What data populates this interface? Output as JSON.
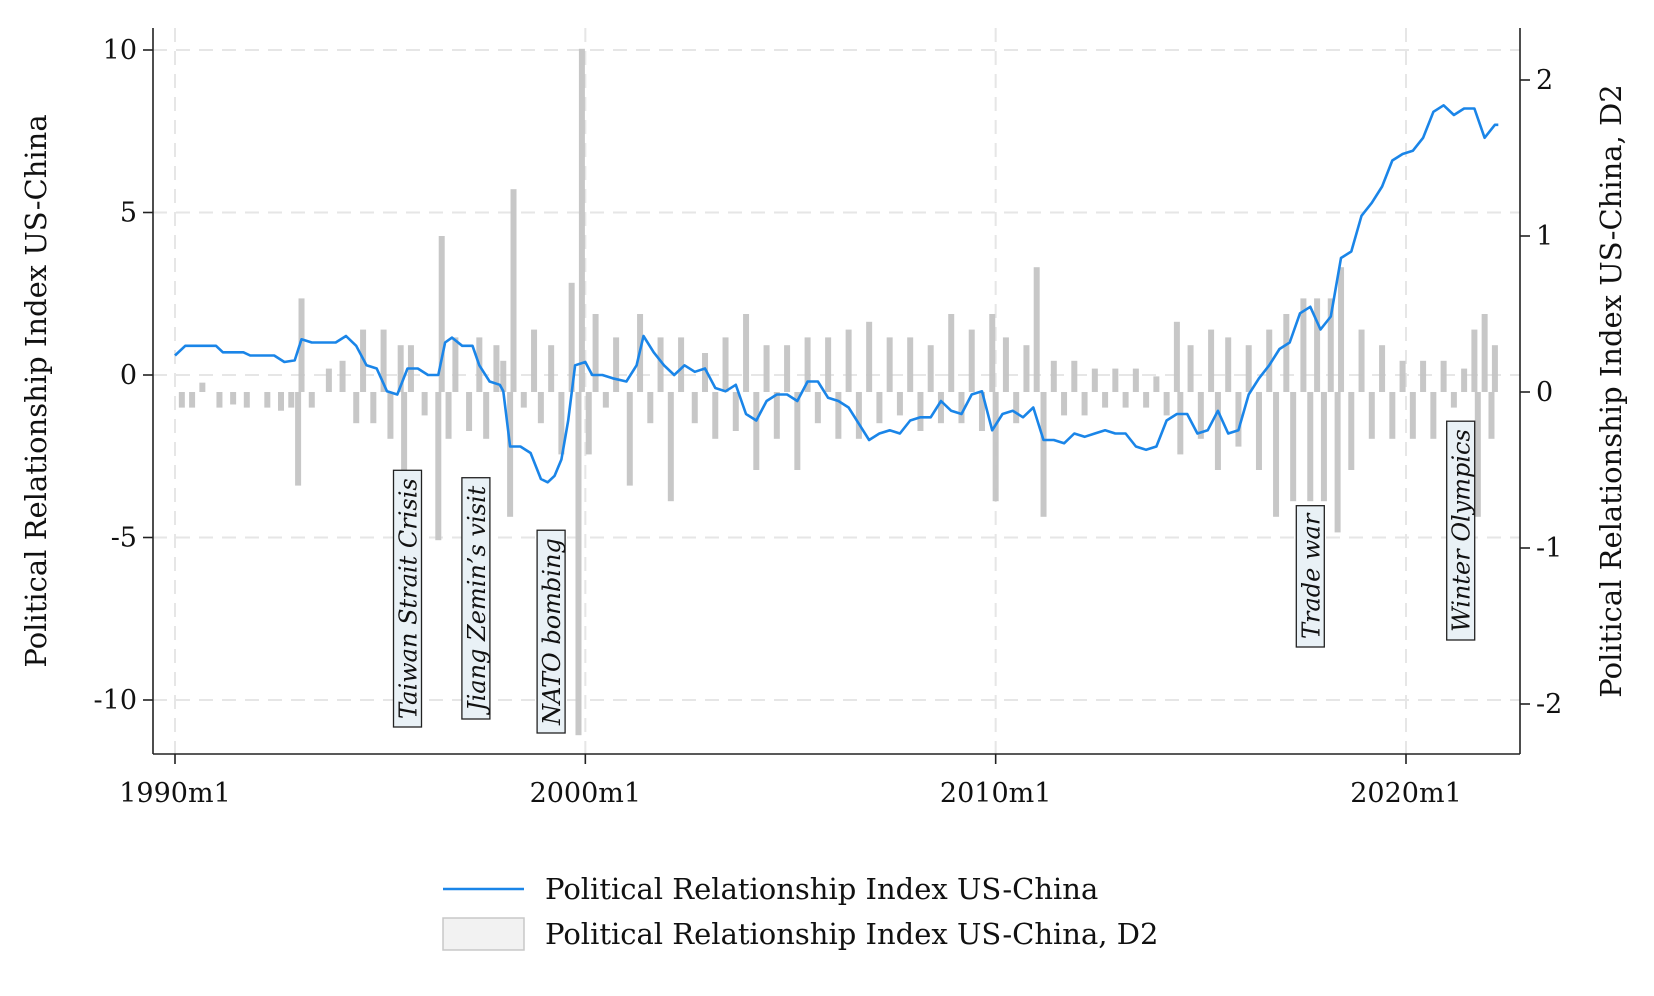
{
  "chart_data": {
    "type": "line",
    "title": "",
    "xlabel": "",
    "ylabel": "Political Relationship Index US-China",
    "ylabel_right": "Political Relationship Index US-China, D2",
    "x_ticks": [
      "1990m1",
      "2000m1",
      "2010m1",
      "2020m1"
    ],
    "x_range": [
      "1990-01",
      "2022-04"
    ],
    "ylim_left": [
      -11.5,
      10.5
    ],
    "ylim_right": [
      -2.3,
      2.3
    ],
    "y_ticks_left": [
      "10",
      "5",
      "0",
      "-5",
      "-10"
    ],
    "y_ticks_right": [
      "2",
      "1",
      "0",
      "-1",
      "-2"
    ],
    "grid": true,
    "legend_position": "bottom",
    "series": [
      {
        "name": "Political Relationship Index US-China",
        "kind": "line",
        "axis": "left",
        "color": "#1a85e8",
        "points": [
          [
            "1990-01",
            0.6
          ],
          [
            "1990-04",
            0.9
          ],
          [
            "1990-07",
            0.9
          ],
          [
            "1991-01",
            0.9
          ],
          [
            "1991-03",
            0.7
          ],
          [
            "1991-09",
            0.7
          ],
          [
            "1991-11",
            0.6
          ],
          [
            "1992-06",
            0.6
          ],
          [
            "1992-09",
            0.4
          ],
          [
            "1992-12",
            0.45
          ],
          [
            "1993-02",
            1.1
          ],
          [
            "1993-05",
            1.0
          ],
          [
            "1993-09",
            1.0
          ],
          [
            "1993-12",
            1.0
          ],
          [
            "1994-03",
            1.2
          ],
          [
            "1994-06",
            0.9
          ],
          [
            "1994-09",
            0.3
          ],
          [
            "1994-12",
            0.2
          ],
          [
            "1995-03",
            -0.5
          ],
          [
            "1995-06",
            -0.6
          ],
          [
            "1995-09",
            0.2
          ],
          [
            "1995-12",
            0.2
          ],
          [
            "1996-03",
            0.0
          ],
          [
            "1996-06",
            0.0
          ],
          [
            "1996-08",
            1.0
          ],
          [
            "1996-10",
            1.15
          ],
          [
            "1997-01",
            0.9
          ],
          [
            "1997-04",
            0.9
          ],
          [
            "1997-06",
            0.3
          ],
          [
            "1997-09",
            -0.2
          ],
          [
            "1997-12",
            -0.3
          ],
          [
            "1998-01",
            -0.5
          ],
          [
            "1998-03",
            -2.2
          ],
          [
            "1998-06",
            -2.2
          ],
          [
            "1998-09",
            -2.4
          ],
          [
            "1998-12",
            -3.2
          ],
          [
            "1999-02",
            -3.3
          ],
          [
            "1999-04",
            -3.1
          ],
          [
            "1999-06",
            -2.6
          ],
          [
            "1999-08",
            -1.4
          ],
          [
            "1999-10",
            0.3
          ],
          [
            "2000-01",
            0.4
          ],
          [
            "2000-03",
            0.0
          ],
          [
            "2000-06",
            0.0
          ],
          [
            "2000-09",
            -0.1
          ],
          [
            "2001-01",
            -0.2
          ],
          [
            "2001-04",
            0.3
          ],
          [
            "2001-06",
            1.2
          ],
          [
            "2001-09",
            0.7
          ],
          [
            "2001-12",
            0.3
          ],
          [
            "2002-03",
            0.0
          ],
          [
            "2002-06",
            0.3
          ],
          [
            "2002-09",
            0.1
          ],
          [
            "2002-12",
            0.2
          ],
          [
            "2003-03",
            -0.4
          ],
          [
            "2003-06",
            -0.5
          ],
          [
            "2003-09",
            -0.3
          ],
          [
            "2003-12",
            -1.2
          ],
          [
            "2004-03",
            -1.4
          ],
          [
            "2004-06",
            -0.8
          ],
          [
            "2004-09",
            -0.6
          ],
          [
            "2004-12",
            -0.6
          ],
          [
            "2005-03",
            -0.8
          ],
          [
            "2005-06",
            -0.2
          ],
          [
            "2005-09",
            -0.2
          ],
          [
            "2005-12",
            -0.7
          ],
          [
            "2006-03",
            -0.8
          ],
          [
            "2006-06",
            -1.0
          ],
          [
            "2006-09",
            -1.5
          ],
          [
            "2006-12",
            -2.0
          ],
          [
            "2007-03",
            -1.8
          ],
          [
            "2007-06",
            -1.7
          ],
          [
            "2007-09",
            -1.8
          ],
          [
            "2007-12",
            -1.4
          ],
          [
            "2008-03",
            -1.3
          ],
          [
            "2008-06",
            -1.3
          ],
          [
            "2008-09",
            -0.8
          ],
          [
            "2008-12",
            -1.1
          ],
          [
            "2009-03",
            -1.2
          ],
          [
            "2009-06",
            -0.6
          ],
          [
            "2009-09",
            -0.5
          ],
          [
            "2009-12",
            -1.7
          ],
          [
            "2010-03",
            -1.2
          ],
          [
            "2010-06",
            -1.1
          ],
          [
            "2010-09",
            -1.3
          ],
          [
            "2010-12",
            -1.0
          ],
          [
            "2011-03",
            -2.0
          ],
          [
            "2011-06",
            -2.0
          ],
          [
            "2011-09",
            -2.1
          ],
          [
            "2011-12",
            -1.8
          ],
          [
            "2012-03",
            -1.9
          ],
          [
            "2012-06",
            -1.8
          ],
          [
            "2012-09",
            -1.7
          ],
          [
            "2012-12",
            -1.8
          ],
          [
            "2013-03",
            -1.8
          ],
          [
            "2013-06",
            -2.2
          ],
          [
            "2013-09",
            -2.3
          ],
          [
            "2013-12",
            -2.2
          ],
          [
            "2014-03",
            -1.4
          ],
          [
            "2014-06",
            -1.2
          ],
          [
            "2014-09",
            -1.2
          ],
          [
            "2014-12",
            -1.8
          ],
          [
            "2015-03",
            -1.7
          ],
          [
            "2015-06",
            -1.1
          ],
          [
            "2015-09",
            -1.8
          ],
          [
            "2015-12",
            -1.7
          ],
          [
            "2016-03",
            -0.6
          ],
          [
            "2016-06",
            -0.1
          ],
          [
            "2016-09",
            0.3
          ],
          [
            "2016-12",
            0.8
          ],
          [
            "2017-03",
            1.0
          ],
          [
            "2017-06",
            1.9
          ],
          [
            "2017-09",
            2.1
          ],
          [
            "2017-12",
            1.4
          ],
          [
            "2018-03",
            1.8
          ],
          [
            "2018-06",
            3.6
          ],
          [
            "2018-09",
            3.8
          ],
          [
            "2018-12",
            4.9
          ],
          [
            "2019-03",
            5.3
          ],
          [
            "2019-06",
            5.8
          ],
          [
            "2019-09",
            6.6
          ],
          [
            "2019-12",
            6.8
          ],
          [
            "2020-03",
            6.9
          ],
          [
            "2020-06",
            7.3
          ],
          [
            "2020-09",
            8.1
          ],
          [
            "2020-12",
            8.3
          ],
          [
            "2021-03",
            8.0
          ],
          [
            "2021-06",
            8.2
          ],
          [
            "2021-09",
            8.2
          ],
          [
            "2021-12",
            7.3
          ],
          [
            "2022-03",
            7.7
          ],
          [
            "2022-04",
            7.7
          ]
        ]
      },
      {
        "name": "Political Relationship Index US-China, D2",
        "kind": "bar",
        "axis": "right",
        "color": "#c4c4c4",
        "points": [
          [
            "1990-03",
            -0.1
          ],
          [
            "1990-06",
            -0.1
          ],
          [
            "1990-09",
            0.06
          ],
          [
            "1991-02",
            -0.1
          ],
          [
            "1991-06",
            -0.08
          ],
          [
            "1991-10",
            -0.1
          ],
          [
            "1992-04",
            -0.1
          ],
          [
            "1992-08",
            -0.12
          ],
          [
            "1992-11",
            -0.1
          ],
          [
            "1993-01",
            -0.6
          ],
          [
            "1993-02",
            0.6
          ],
          [
            "1993-05",
            -0.1
          ],
          [
            "1993-10",
            0.15
          ],
          [
            "1994-02",
            0.2
          ],
          [
            "1994-06",
            -0.2
          ],
          [
            "1994-08",
            0.4
          ],
          [
            "1994-11",
            -0.2
          ],
          [
            "1995-02",
            0.4
          ],
          [
            "1995-04",
            -0.3
          ],
          [
            "1995-07",
            0.3
          ],
          [
            "1995-08",
            -0.5
          ],
          [
            "1995-10",
            0.3
          ],
          [
            "1996-02",
            -0.15
          ],
          [
            "1996-06",
            -0.95
          ],
          [
            "1996-07",
            1.0
          ],
          [
            "1996-09",
            -0.3
          ],
          [
            "1996-11",
            0.35
          ],
          [
            "1997-03",
            -0.25
          ],
          [
            "1997-06",
            0.35
          ],
          [
            "1997-08",
            -0.3
          ],
          [
            "1997-11",
            0.3
          ],
          [
            "1998-01",
            0.2
          ],
          [
            "1998-03",
            -0.8
          ],
          [
            "1998-04",
            1.3
          ],
          [
            "1998-07",
            -0.1
          ],
          [
            "1998-10",
            0.4
          ],
          [
            "1998-12",
            -0.2
          ],
          [
            "1999-03",
            0.3
          ],
          [
            "1999-06",
            -0.4
          ],
          [
            "1999-09",
            0.7
          ],
          [
            "1999-11",
            -2.2
          ],
          [
            "1999-12",
            2.2
          ],
          [
            "2000-02",
            -0.4
          ],
          [
            "2000-04",
            0.5
          ],
          [
            "2000-07",
            -0.1
          ],
          [
            "2000-10",
            0.35
          ],
          [
            "2001-02",
            -0.6
          ],
          [
            "2001-05",
            0.5
          ],
          [
            "2001-08",
            -0.2
          ],
          [
            "2001-11",
            0.35
          ],
          [
            "2002-02",
            -0.7
          ],
          [
            "2002-05",
            0.35
          ],
          [
            "2002-09",
            -0.2
          ],
          [
            "2002-12",
            0.25
          ],
          [
            "2003-03",
            -0.3
          ],
          [
            "2003-06",
            0.35
          ],
          [
            "2003-09",
            -0.25
          ],
          [
            "2003-12",
            0.5
          ],
          [
            "2004-03",
            -0.5
          ],
          [
            "2004-06",
            0.3
          ],
          [
            "2004-09",
            -0.3
          ],
          [
            "2004-12",
            0.3
          ],
          [
            "2005-03",
            -0.5
          ],
          [
            "2005-06",
            0.35
          ],
          [
            "2005-09",
            -0.2
          ],
          [
            "2005-12",
            0.35
          ],
          [
            "2006-03",
            -0.3
          ],
          [
            "2006-06",
            0.4
          ],
          [
            "2006-09",
            -0.3
          ],
          [
            "2006-12",
            0.45
          ],
          [
            "2007-03",
            -0.2
          ],
          [
            "2007-06",
            0.35
          ],
          [
            "2007-09",
            -0.15
          ],
          [
            "2007-12",
            0.35
          ],
          [
            "2008-03",
            -0.25
          ],
          [
            "2008-06",
            0.3
          ],
          [
            "2008-09",
            -0.2
          ],
          [
            "2008-12",
            0.5
          ],
          [
            "2009-03",
            -0.2
          ],
          [
            "2009-06",
            0.4
          ],
          [
            "2009-09",
            -0.25
          ],
          [
            "2009-12",
            0.5
          ],
          [
            "2010-01",
            -0.7
          ],
          [
            "2010-04",
            0.35
          ],
          [
            "2010-07",
            -0.2
          ],
          [
            "2010-10",
            0.3
          ],
          [
            "2011-01",
            0.8
          ],
          [
            "2011-03",
            -0.8
          ],
          [
            "2011-06",
            0.2
          ],
          [
            "2011-09",
            -0.15
          ],
          [
            "2011-12",
            0.2
          ],
          [
            "2012-03",
            -0.15
          ],
          [
            "2012-06",
            0.15
          ],
          [
            "2012-09",
            -0.1
          ],
          [
            "2012-12",
            0.15
          ],
          [
            "2013-03",
            -0.1
          ],
          [
            "2013-06",
            0.15
          ],
          [
            "2013-09",
            -0.1
          ],
          [
            "2013-12",
            0.1
          ],
          [
            "2014-03",
            -0.15
          ],
          [
            "2014-06",
            0.45
          ],
          [
            "2014-07",
            -0.4
          ],
          [
            "2014-10",
            0.3
          ],
          [
            "2015-01",
            -0.3
          ],
          [
            "2015-04",
            0.4
          ],
          [
            "2015-06",
            -0.5
          ],
          [
            "2015-09",
            0.35
          ],
          [
            "2015-12",
            -0.35
          ],
          [
            "2016-03",
            0.3
          ],
          [
            "2016-06",
            -0.5
          ],
          [
            "2016-09",
            0.4
          ],
          [
            "2016-11",
            -0.8
          ],
          [
            "2017-02",
            0.5
          ],
          [
            "2017-04",
            -0.7
          ],
          [
            "2017-07",
            0.6
          ],
          [
            "2017-09",
            -0.7
          ],
          [
            "2017-11",
            0.6
          ],
          [
            "2018-01",
            -0.7
          ],
          [
            "2018-03",
            0.6
          ],
          [
            "2018-05",
            -0.9
          ],
          [
            "2018-06",
            0.8
          ],
          [
            "2018-09",
            -0.5
          ],
          [
            "2018-12",
            0.4
          ],
          [
            "2019-03",
            -0.3
          ],
          [
            "2019-06",
            0.3
          ],
          [
            "2019-09",
            -0.3
          ],
          [
            "2019-12",
            0.2
          ],
          [
            "2020-03",
            -0.3
          ],
          [
            "2020-06",
            0.2
          ],
          [
            "2020-09",
            -0.3
          ],
          [
            "2020-12",
            0.2
          ],
          [
            "2021-03",
            -0.1
          ],
          [
            "2021-06",
            0.15
          ],
          [
            "2021-09",
            0.4
          ],
          [
            "2021-10",
            -0.8
          ],
          [
            "2021-12",
            0.5
          ],
          [
            "2022-02",
            -0.3
          ],
          [
            "2022-03",
            0.3
          ]
        ]
      }
    ],
    "annotations": [
      {
        "text": "Taiwan Strait Crisis",
        "x": "1995-09"
      },
      {
        "text": "Jiang Zemin’s visit",
        "x": "1997-05"
      },
      {
        "text": "NATO bombing",
        "x": "1999-03"
      },
      {
        "text": "Trade war",
        "x": "2017-09"
      },
      {
        "text": "Winter Olympics",
        "x": "2021-05"
      }
    ],
    "legend": [
      {
        "label": "Political Relationship Index US-China",
        "marker": "line",
        "color": "#1a85e8"
      },
      {
        "label": "Political Relationship Index US-China, D2",
        "marker": "box",
        "color": "#f2f2f2"
      }
    ]
  }
}
